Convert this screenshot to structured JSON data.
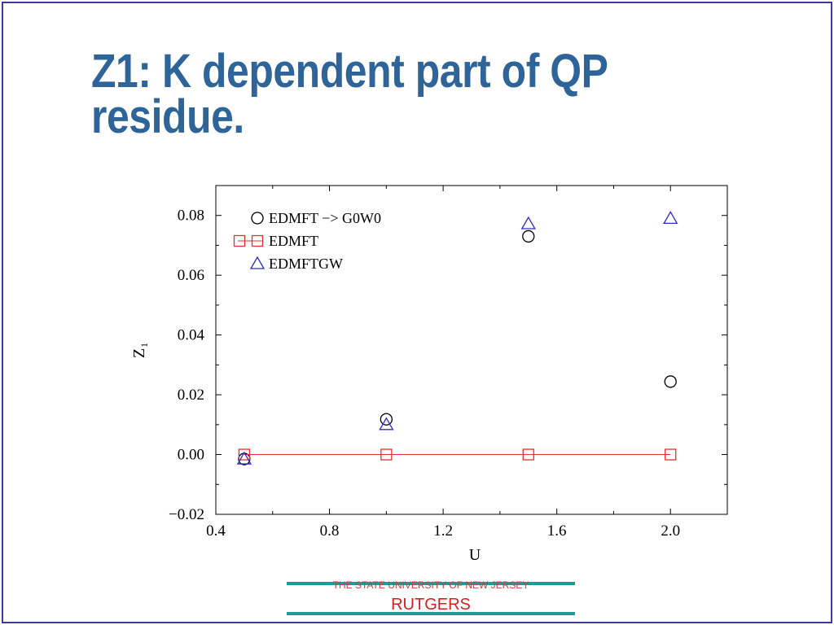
{
  "slide": {
    "title_line1": "Z1: K dependent part of QP",
    "title_line2": "residue."
  },
  "footer": {
    "subtitle": "THE STATE UNIVERSITY OF NEW JERSEY",
    "name": "RUTGERS"
  },
  "colors": {
    "title": "#2e6497",
    "frame": "#3a3aa0",
    "footer_line": "#1f9a9a",
    "footer_text": "#d21f1f"
  },
  "chart_data": {
    "type": "scatter",
    "title": "",
    "xlabel": "U",
    "ylabel": "Z",
    "ylabel_subscript": "1",
    "xlim": [
      0.4,
      2.2
    ],
    "ylim": [
      -0.02,
      0.09
    ],
    "xticks": [
      "0.4",
      "0.8",
      "1.2",
      "1.6",
      "2.0"
    ],
    "yticks": [
      "−0.02",
      "0.00",
      "0.02",
      "0.04",
      "0.06",
      "0.08"
    ],
    "grid": false,
    "legend_position": "top-left",
    "series": [
      {
        "name": "EDMFT −> G0W0",
        "marker": "circle",
        "line": false,
        "color": "#000000",
        "x": [
          0.5,
          1.0,
          1.5,
          2.0
        ],
        "y": [
          -0.0015,
          0.0118,
          0.073,
          0.0244
        ]
      },
      {
        "name": "EDMFT",
        "marker": "square",
        "line": true,
        "color": "#e03030",
        "x": [
          0.5,
          1.0,
          1.5,
          2.0
        ],
        "y": [
          0.0,
          0.0,
          0.0,
          0.0
        ]
      },
      {
        "name": "EDMFTGW",
        "marker": "triangle",
        "line": false,
        "color": "#2a2ad0",
        "x": [
          0.5,
          1.0,
          1.5,
          2.0
        ],
        "y": [
          -0.0015,
          0.01,
          0.0772,
          0.079
        ]
      }
    ]
  }
}
